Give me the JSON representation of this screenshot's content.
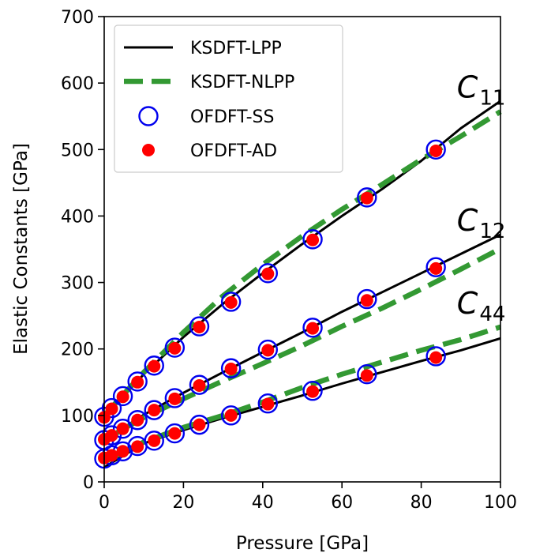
{
  "chart_data": {
    "type": "line",
    "xlabel": "Pressure [GPa]",
    "ylabel": "Elastic Constants [GPa]",
    "xlim": [
      0,
      100
    ],
    "ylim": [
      0,
      700
    ],
    "x_ticks": [
      "0",
      "20",
      "40",
      "60",
      "80",
      "100"
    ],
    "y_ticks": [
      "0",
      "100",
      "200",
      "300",
      "400",
      "500",
      "600",
      "700"
    ],
    "grid": false,
    "legend_position": "top-left",
    "series": [
      {
        "name": "KSDFT-LPP",
        "style": "solid-line",
        "color": "#000000",
        "groups": [
          {
            "constant": "C11",
            "x": [
              0,
              10,
              20,
              30,
              40,
              50,
              60,
              70,
              80,
              90,
              100
            ],
            "y": [
              97,
              162,
              218,
              268,
              314,
              358,
              400,
              440,
              483,
              532,
              573
            ]
          },
          {
            "constant": "C12",
            "x": [
              0,
              10,
              20,
              30,
              40,
              50,
              60,
              70,
              80,
              90,
              100
            ],
            "y": [
              63,
              101,
              134,
              165,
              195,
              225,
              256,
              285,
              314,
              343,
              372
            ]
          },
          {
            "constant": "C44",
            "x": [
              0,
              10,
              20,
              30,
              40,
              50,
              60,
              70,
              80,
              90,
              100
            ],
            "y": [
              22,
              58,
              78,
              96,
              113,
              130,
              148,
              165,
              182,
              198,
              216
            ]
          }
        ]
      },
      {
        "name": "KSDFT-NLPP",
        "style": "dashed-line",
        "color": "#339933",
        "groups": [
          {
            "constant": "C11",
            "x": [
              0,
              10,
              20,
              30,
              40,
              50,
              60,
              70,
              80,
              90,
              100
            ],
            "y": [
              100,
              165,
              225,
              280,
              327,
              370,
              410,
              447,
              485,
              520,
              557
            ]
          },
          {
            "constant": "C12",
            "x": [
              0,
              10,
              20,
              30,
              40,
              50,
              60,
              70,
              80,
              90,
              100
            ],
            "y": [
              63,
              97,
              125,
              152,
              178,
              205,
              234,
              261,
              290,
              320,
              351
            ]
          },
          {
            "constant": "C44",
            "x": [
              0,
              10,
              20,
              30,
              40,
              50,
              60,
              70,
              80,
              90,
              100
            ],
            "y": [
              30,
              60,
              82,
              100,
              120,
              142,
              162,
              180,
              198,
              214,
              233
            ]
          }
        ]
      },
      {
        "name": "OFDFT-SS",
        "style": "open-circle",
        "color": "#0000ee",
        "groups": [
          {
            "constant": "C11",
            "x": [
              0,
              1.9,
              4.7,
              8.4,
              12.6,
              17.8,
              24.0,
              32.0,
              41.3,
              52.6,
              66.3,
              83.7
            ],
            "y": [
              98,
              111,
              129,
              151,
              175,
              202,
              234,
              271,
              314,
              365,
              428,
              500
            ]
          },
          {
            "constant": "C12",
            "x": [
              0,
              1.9,
              4.7,
              8.4,
              12.6,
              17.8,
              24.0,
              32.0,
              41.3,
              52.6,
              66.3,
              83.7
            ],
            "y": [
              63,
              70,
              80,
              93,
              108,
              126,
              146,
              171,
              199,
              232,
              275,
              323
            ]
          },
          {
            "constant": "C44",
            "x": [
              0,
              1.9,
              4.7,
              8.4,
              12.6,
              17.8,
              24.0,
              32.0,
              41.3,
              52.6,
              66.3,
              83.7
            ],
            "y": [
              35,
              40,
              46,
              54,
              62,
              73,
              86,
              100,
              118,
              137,
              162,
              189
            ]
          }
        ]
      },
      {
        "name": "OFDFT-AD",
        "style": "filled-circle",
        "color": "#ff0000",
        "groups": [
          {
            "constant": "C11",
            "x": [
              0,
              1.9,
              4.7,
              8.4,
              12.6,
              17.8,
              24.0,
              32.0,
              41.3,
              52.6,
              66.3,
              83.7
            ],
            "y": [
              97,
              110,
              128,
              150,
              174,
              201,
              233,
              270,
              313,
              364,
              427,
              498
            ]
          },
          {
            "constant": "C12",
            "x": [
              0,
              1.9,
              4.7,
              8.4,
              12.6,
              17.8,
              24.0,
              32.0,
              41.3,
              52.6,
              66.3,
              83.7
            ],
            "y": [
              64,
              70,
              80,
              93,
              108,
              125,
              145,
              170,
              198,
              231,
              273,
              321
            ]
          },
          {
            "constant": "C44",
            "x": [
              0,
              1.9,
              4.7,
              8.4,
              12.6,
              17.8,
              24.0,
              32.0,
              41.3,
              52.6,
              66.3,
              83.7
            ],
            "y": [
              36,
              40,
              46,
              53,
              62,
              73,
              86,
              100,
              117,
              136,
              160,
              187
            ]
          }
        ]
      }
    ],
    "annotations": [
      {
        "base": "C",
        "sub": "11",
        "x": 89,
        "y": 578
      },
      {
        "base": "C",
        "sub": "12",
        "x": 89,
        "y": 378
      },
      {
        "base": "C",
        "sub": "44",
        "x": 89,
        "y": 253
      }
    ]
  }
}
